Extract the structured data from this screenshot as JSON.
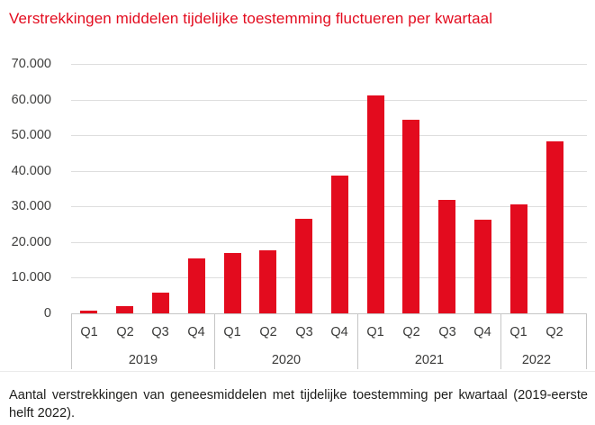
{
  "title": "Verstrekkingen middelen tijdelijke toestemming fluctueren per kwartaal",
  "caption": "Aantal verstrekkingen van geneesmiddelen met tijdelijke toestemming per kwartaal (2019-eerste helft 2022).",
  "colors": {
    "accent_red": "#e30b1e",
    "gridline": "#dedede",
    "axis_line": "#c6c6c6",
    "axis_text": "#3a3a39",
    "caption_text": "#1d1d1b"
  },
  "chart_data": {
    "type": "bar",
    "title": "Verstrekkingen middelen tijdelijke toestemming fluctueren per kwartaal",
    "xlabel": "",
    "ylabel": "",
    "ylim": [
      0,
      70000
    ],
    "ytick_interval": 10000,
    "ytick_labels_top_to_bottom": [
      "70.000",
      "60.000",
      "50.000",
      "40.000",
      "30.000",
      "20.000",
      "10.000",
      "0"
    ],
    "grid": "horizontal",
    "legend": "none",
    "bar_color": "#e30b1e",
    "groups": [
      {
        "year": "2019",
        "quarters": [
          "Q1",
          "Q2",
          "Q3",
          "Q4"
        ],
        "values": [
          700,
          2100,
          5800,
          15400
        ]
      },
      {
        "year": "2020",
        "quarters": [
          "Q1",
          "Q2",
          "Q3",
          "Q4"
        ],
        "values": [
          17000,
          17600,
          26600,
          38700
        ]
      },
      {
        "year": "2021",
        "quarters": [
          "Q1",
          "Q2",
          "Q3",
          "Q4"
        ],
        "values": [
          61100,
          54400,
          31900,
          26200
        ]
      },
      {
        "year": "2022",
        "quarters": [
          "Q1",
          "Q2"
        ],
        "values": [
          30600,
          48300
        ]
      }
    ]
  }
}
